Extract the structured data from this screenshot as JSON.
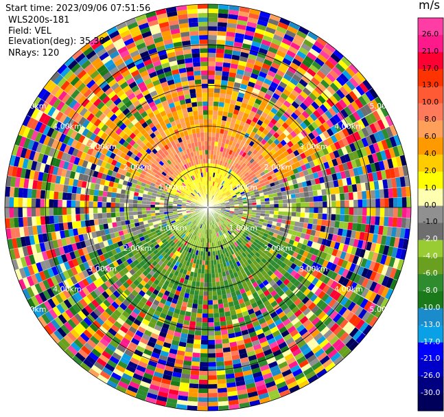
{
  "header": {
    "start_time_label": "Start time:",
    "start_time": "2023/09/06 07:51:56",
    "instrument": "WLS200s-181",
    "field_label": "Field:",
    "field": "VEL",
    "elevation_label": "Elevation(deg):",
    "elevation": "35.30",
    "nrays_label": "NRays:",
    "nrays": "120"
  },
  "colorbar": {
    "unit": "m/s",
    "ticks": [
      "26.0",
      "21.0",
      "17.0",
      "13.0",
      "10.0",
      "8.0",
      "6.0",
      "4.0",
      "2.0",
      "1.0",
      "0.0",
      "-1.0",
      "-2.0",
      "-4.0",
      "-6.0",
      "-8.0",
      "-10.0",
      "-13.0",
      "-17.0",
      "-21.0",
      "-26.0",
      "-30.0"
    ],
    "colors": [
      "#ff3ea5",
      "#ff1a8c",
      "#ff0033",
      "#ff3300",
      "#ff5a33",
      "#ff7a5a",
      "#ffa05a",
      "#ff9900",
      "#ffcc00",
      "#ffff00",
      "#ffffb0",
      "#909090",
      "#6e6e6e",
      "#99cc33",
      "#6aa020",
      "#2e8b2e",
      "#1a7a1a",
      "#1a8ccc",
      "#0aa0e6",
      "#0000ff",
      "#0000c8",
      "#000080",
      "#00005a"
    ],
    "text_colors_white_from_index": 12
  },
  "chart_data": {
    "type": "heatmap",
    "projection": "ppi-polar",
    "field": "VEL",
    "units": "m/s",
    "vmin": -30.0,
    "vmax": 30.0,
    "nrays": 120,
    "range_rings_km": [
      1.0,
      2.0,
      3.0,
      4.0,
      5.0
    ],
    "ring_labels": [
      "1.00km",
      "2.00km",
      "3.00km",
      "4.00km",
      "5.00km"
    ],
    "max_range_km": 5.0,
    "pattern": {
      "north_sector": "positive 2-6 m/s (yellow/orange/salmon)",
      "south_sector": "negative -2 to -8 m/s (green)",
      "east_west": "near zero (grey)",
      "outer_ranges": "noise spanning full scale"
    }
  }
}
